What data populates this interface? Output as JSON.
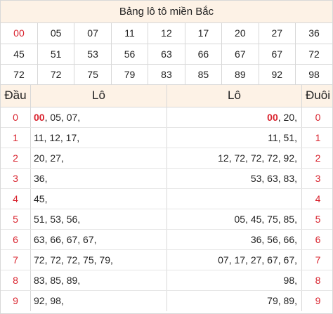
{
  "title": "Bảng lô tô miền Bắc",
  "numbers": [
    [
      "00",
      "05",
      "07",
      "11",
      "12",
      "17",
      "20",
      "27",
      "36"
    ],
    [
      "45",
      "51",
      "53",
      "56",
      "63",
      "66",
      "67",
      "67",
      "72"
    ],
    [
      "72",
      "72",
      "75",
      "79",
      "83",
      "85",
      "89",
      "92",
      "98"
    ]
  ],
  "header": {
    "dau": "Đầu",
    "lo_left": "Lô",
    "lo_right": "Lô",
    "duoi": "Đuôi"
  },
  "rows": [
    {
      "dau": "0",
      "hl_left": "00",
      "left": ", 05, 07,",
      "hl_right": "00",
      "right": ", 20,",
      "duoi": "0"
    },
    {
      "dau": "1",
      "hl_left": "",
      "left": "11, 12, 17,",
      "hl_right": "",
      "right": "11, 51,",
      "duoi": "1"
    },
    {
      "dau": "2",
      "hl_left": "",
      "left": "20, 27,",
      "hl_right": "",
      "right": "12, 72, 72, 72, 92,",
      "duoi": "2"
    },
    {
      "dau": "3",
      "hl_left": "",
      "left": "36,",
      "hl_right": "",
      "right": "53, 63, 83,",
      "duoi": "3"
    },
    {
      "dau": "4",
      "hl_left": "",
      "left": "45,",
      "hl_right": "",
      "right": "",
      "duoi": "4"
    },
    {
      "dau": "5",
      "hl_left": "",
      "left": "51, 53, 56,",
      "hl_right": "",
      "right": "05, 45, 75, 85,",
      "duoi": "5"
    },
    {
      "dau": "6",
      "hl_left": "",
      "left": "63, 66, 67, 67,",
      "hl_right": "",
      "right": "36, 56, 66,",
      "duoi": "6"
    },
    {
      "dau": "7",
      "hl_left": "",
      "left": "72, 72, 72, 75, 79,",
      "hl_right": "",
      "right": "07, 17, 27, 67, 67,",
      "duoi": "7"
    },
    {
      "dau": "8",
      "hl_left": "",
      "left": "83, 85, 89,",
      "hl_right": "",
      "right": "98,",
      "duoi": "8"
    },
    {
      "dau": "9",
      "hl_left": "",
      "left": "92, 98,",
      "hl_right": "",
      "right": "79, 89,",
      "duoi": "9"
    }
  ],
  "colors": {
    "accent_red": "#d9232e",
    "header_bg": "#fdf2e6",
    "border": "#d8d8d8"
  }
}
